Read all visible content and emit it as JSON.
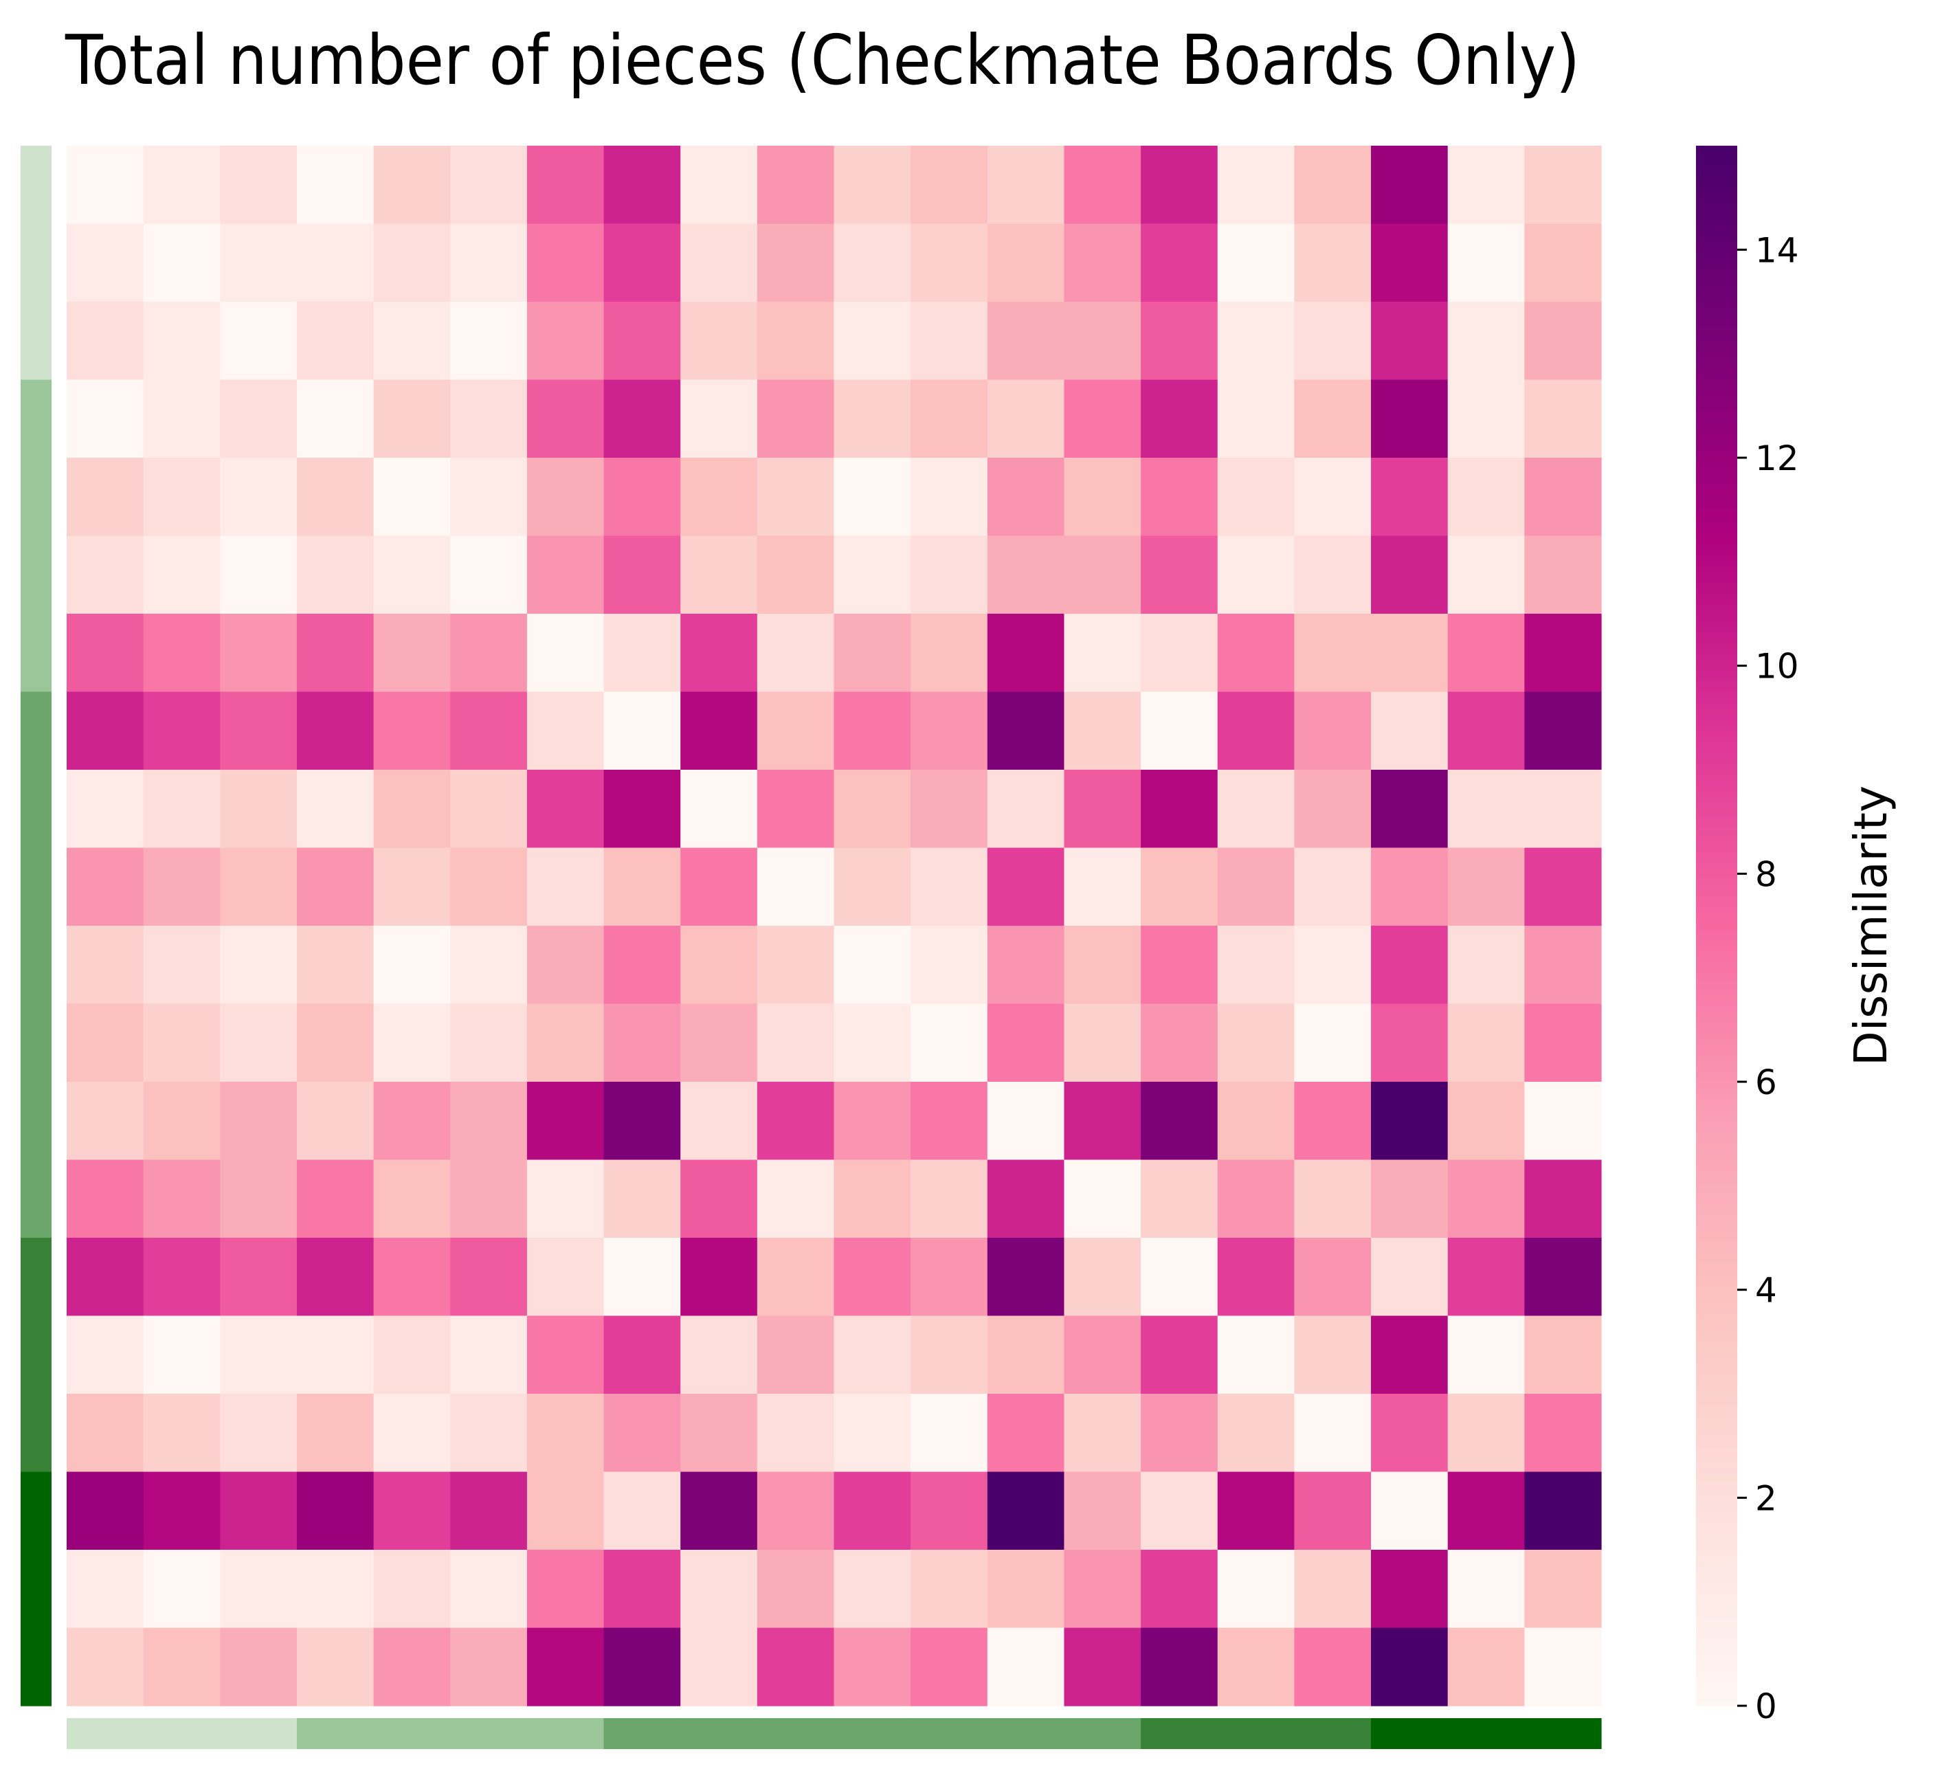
{
  "chart_data": {
    "type": "heatmap",
    "title": "Total number of pieces (Checkmate Boards Only)",
    "colorbar": {
      "label": "Dissimilarity",
      "range": [
        0,
        15
      ],
      "ticks": [
        0,
        2,
        4,
        6,
        8,
        10,
        12,
        14
      ],
      "colormap": "RdPu",
      "stops": [
        "#fff7f3",
        "#fde0dd",
        "#fcc5c0",
        "#fa9fb5",
        "#f768a1",
        "#dd3497",
        "#ae017e",
        "#7a0177",
        "#49006a"
      ]
    },
    "row_group_colors": [
      "#cfe3cc",
      "#cfe3cc",
      "#cfe3cc",
      "#9bc699",
      "#9bc699",
      "#9bc699",
      "#9bc699",
      "#6aa669",
      "#6aa669",
      "#6aa669",
      "#6aa669",
      "#6aa669",
      "#6aa669",
      "#6aa669",
      "#378237",
      "#378237",
      "#378237",
      "#006400",
      "#006400",
      "#006400"
    ],
    "col_group_colors": [
      "#cfe3cc",
      "#cfe3cc",
      "#cfe3cc",
      "#9bc699",
      "#9bc699",
      "#9bc699",
      "#9bc699",
      "#6aa669",
      "#6aa669",
      "#6aa669",
      "#6aa669",
      "#6aa669",
      "#6aa669",
      "#6aa669",
      "#378237",
      "#378237",
      "#378237",
      "#006400",
      "#006400",
      "#006400"
    ],
    "values": [
      [
        0,
        1,
        2,
        0,
        3,
        2,
        8,
        10,
        1,
        6,
        3,
        4,
        3,
        7,
        10,
        1,
        4,
        12,
        1,
        3
      ],
      [
        1,
        0,
        1,
        1,
        2,
        1,
        7,
        9,
        2,
        5,
        2,
        3,
        4,
        6,
        9,
        0,
        3,
        11,
        0,
        4
      ],
      [
        2,
        1,
        0,
        2,
        1,
        0,
        6,
        8,
        3,
        4,
        1,
        2,
        5,
        5,
        8,
        1,
        2,
        10,
        1,
        5
      ],
      [
        0,
        1,
        2,
        0,
        3,
        2,
        8,
        10,
        1,
        6,
        3,
        4,
        3,
        7,
        10,
        1,
        4,
        12,
        1,
        3
      ],
      [
        3,
        2,
        1,
        3,
        0,
        1,
        5,
        7,
        4,
        3,
        0,
        1,
        6,
        4,
        7,
        2,
        1,
        9,
        2,
        6
      ],
      [
        2,
        1,
        0,
        2,
        1,
        0,
        6,
        8,
        3,
        4,
        1,
        2,
        5,
        5,
        8,
        1,
        2,
        10,
        1,
        5
      ],
      [
        8,
        7,
        6,
        8,
        5,
        6,
        0,
        2,
        9,
        2,
        5,
        4,
        11,
        1,
        2,
        7,
        4,
        4,
        7,
        11
      ],
      [
        10,
        9,
        8,
        10,
        7,
        8,
        2,
        0,
        11,
        4,
        7,
        6,
        13,
        3,
        0,
        9,
        6,
        2,
        9,
        13
      ],
      [
        1,
        2,
        3,
        1,
        4,
        3,
        9,
        11,
        0,
        7,
        4,
        5,
        2,
        8,
        11,
        2,
        5,
        13,
        2,
        2
      ],
      [
        6,
        5,
        4,
        6,
        3,
        4,
        2,
        4,
        7,
        0,
        3,
        2,
        9,
        1,
        4,
        5,
        2,
        6,
        5,
        9
      ],
      [
        3,
        2,
        1,
        3,
        0,
        1,
        5,
        7,
        4,
        3,
        0,
        1,
        6,
        4,
        7,
        2,
        1,
        9,
        2,
        6
      ],
      [
        4,
        3,
        2,
        4,
        1,
        2,
        4,
        6,
        5,
        2,
        1,
        0,
        7,
        3,
        6,
        3,
        0,
        8,
        3,
        7
      ],
      [
        3,
        4,
        5,
        3,
        6,
        5,
        11,
        13,
        2,
        9,
        6,
        7,
        0,
        10,
        13,
        4,
        7,
        15,
        4,
        0
      ],
      [
        7,
        6,
        5,
        7,
        4,
        5,
        1,
        3,
        8,
        1,
        4,
        3,
        10,
        0,
        3,
        6,
        3,
        5,
        6,
        10
      ],
      [
        10,
        9,
        8,
        10,
        7,
        8,
        2,
        0,
        11,
        4,
        7,
        6,
        13,
        3,
        0,
        9,
        6,
        2,
        9,
        13
      ],
      [
        1,
        0,
        1,
        1,
        2,
        1,
        7,
        9,
        2,
        5,
        2,
        3,
        4,
        6,
        9,
        0,
        3,
        11,
        0,
        4
      ],
      [
        4,
        3,
        2,
        4,
        1,
        2,
        4,
        6,
        5,
        2,
        1,
        0,
        7,
        3,
        6,
        3,
        0,
        8,
        3,
        7
      ],
      [
        12,
        11,
        10,
        12,
        9,
        10,
        4,
        2,
        13,
        6,
        9,
        8,
        15,
        5,
        2,
        11,
        8,
        0,
        11,
        15
      ],
      [
        1,
        0,
        1,
        1,
        2,
        1,
        7,
        9,
        2,
        5,
        2,
        3,
        4,
        6,
        9,
        0,
        3,
        11,
        0,
        4
      ],
      [
        3,
        4,
        5,
        3,
        6,
        5,
        11,
        13,
        2,
        9,
        6,
        7,
        0,
        10,
        13,
        4,
        7,
        15,
        4,
        0
      ]
    ]
  }
}
